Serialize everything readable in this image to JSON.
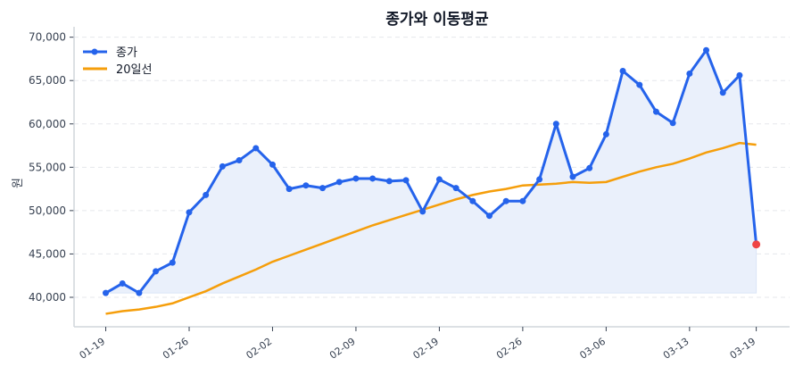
{
  "chart_data": {
    "type": "line",
    "title": "종가와 이동평균",
    "xlabel": "",
    "ylabel": "원",
    "x_tick_labels": [
      {
        "index": 0,
        "label": "01-19"
      },
      {
        "index": 5,
        "label": "01-26"
      },
      {
        "index": 10,
        "label": "02-02"
      },
      {
        "index": 15,
        "label": "02-09"
      },
      {
        "index": 20,
        "label": "02-19"
      },
      {
        "index": 25,
        "label": "02-26"
      },
      {
        "index": 30,
        "label": "03-06"
      },
      {
        "index": 35,
        "label": "03-13"
      },
      {
        "index": 39,
        "label": "03-19"
      }
    ],
    "y_ticks": [
      40000,
      45000,
      50000,
      55000,
      60000,
      65000,
      70000
    ],
    "y_tick_labels": [
      "40,000",
      "45,000",
      "50,000",
      "55,000",
      "60,000",
      "65,000",
      "70,000"
    ],
    "ylim": [
      36600,
      71200
    ],
    "xlim": [
      -1.9,
      41
    ],
    "grid": "horizontal dashed",
    "legend": "top-left",
    "series": [
      {
        "name": "종가",
        "color": "#2563eb",
        "marker": "circle",
        "fill": "#eaf0fb",
        "values": [
          40500,
          41600,
          40500,
          43000,
          44000,
          49800,
          51800,
          55100,
          55800,
          57200,
          55300,
          52500,
          52900,
          52600,
          53300,
          53700,
          53700,
          53400,
          53500,
          49900,
          53600,
          52600,
          51100,
          49400,
          51100,
          51100,
          53600,
          60000,
          53900,
          54900,
          58800,
          66100,
          64500,
          61400,
          60100,
          65800,
          68500,
          63600,
          65600,
          46100
        ],
        "last_point_color": "#ef4444"
      },
      {
        "name": "20일선",
        "color": "#f59e0b",
        "values": [
          38100,
          38400,
          38600,
          38900,
          39300,
          40000,
          40700,
          41600,
          42400,
          43200,
          44100,
          44800,
          45500,
          46200,
          46900,
          47600,
          48300,
          48900,
          49500,
          50100,
          50700,
          51300,
          51800,
          52200,
          52500,
          52900,
          53000,
          53100,
          53300,
          53200,
          53300,
          53900,
          54500,
          55000,
          55400,
          56000,
          56700,
          57200,
          57800,
          57600
        ]
      }
    ]
  }
}
